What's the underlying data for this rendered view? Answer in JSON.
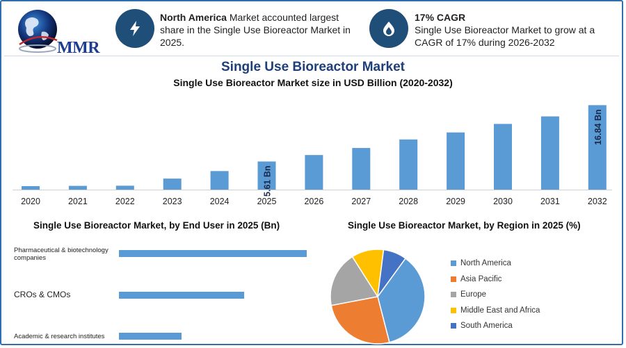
{
  "header": {
    "logo_text": "MMR",
    "info_left": {
      "icon": "lightning-bolt-icon",
      "bold": "North America",
      "text": " Market accounted largest share in the Single Use Bioreactor Market in 2025."
    },
    "info_right": {
      "icon": "growth-flame-icon",
      "bold": "17% CAGR",
      "text": "Single Use Bioreactor Market to grow at a CAGR of 17% during 2026-2032"
    }
  },
  "colors": {
    "bar": "#5b9bd5",
    "icon_bg": "#1f4e79",
    "title": "#1f3f7a"
  },
  "chart_data": [
    {
      "type": "bar",
      "title": "Single Use Bioreactor Market",
      "subtitle": "Single Use Bioreactor Market size in USD Billion (2020-2032)",
      "categories": [
        "2020",
        "2021",
        "2022",
        "2023",
        "2024",
        "2025",
        "2026",
        "2027",
        "2028",
        "2029",
        "2030",
        "2031",
        "2032"
      ],
      "values": [
        0.7,
        0.75,
        0.78,
        2.2,
        3.7,
        5.61,
        6.9,
        8.3,
        10.0,
        11.4,
        13.1,
        14.6,
        16.84
      ],
      "data_labels": {
        "2025": "5.61 Bn",
        "2032": "16.84 Bn"
      },
      "ylim": [
        0,
        18
      ],
      "grid": false
    },
    {
      "type": "bar",
      "orientation": "horizontal",
      "title": "Single Use Bioreactor Market, by End User in 2025 (Bn)",
      "categories": [
        "Pharmaceutical & biotechnology companies",
        "CROs & CMOs",
        "Academic & research institutes"
      ],
      "values": [
        3.0,
        2.0,
        1.0
      ],
      "xlim": [
        0,
        3.0
      ]
    },
    {
      "type": "pie",
      "title": "Single Use Bioreactor Market, by Region in 2025 (%)",
      "categories": [
        "North America",
        "Asia Pacific",
        "Europe",
        "Middle East and Africa",
        "South America"
      ],
      "values": [
        36,
        26,
        19,
        11,
        8
      ],
      "colors": [
        "#5b9bd5",
        "#ed7d31",
        "#a5a5a5",
        "#ffc000",
        "#4472c4"
      ],
      "legend": "right"
    }
  ]
}
